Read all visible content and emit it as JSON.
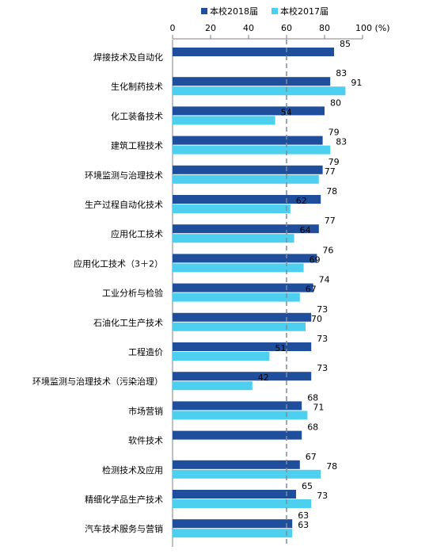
{
  "chart_data": {
    "type": "bar",
    "orientation": "horizontal",
    "xlim": [
      0,
      100
    ],
    "x_ticks": [
      0,
      20,
      40,
      60,
      80,
      100
    ],
    "x_unit": "(%)",
    "reference_line": 60,
    "legend_position": "top-right",
    "categories": [
      "焊接技术及自动化",
      "生化制药技术",
      "化工装备技术",
      "建筑工程技术",
      "环境监测与治理技术",
      "生产过程自动化技术",
      "应用化工技术",
      "应用化工技术（3＋2）",
      "工业分析与检验",
      "石油化工生产技术",
      "工程造价",
      "环境监测与治理技术（污染治理）",
      "市场营销",
      "软件技术",
      "检测技术及应用",
      "精细化学品生产技术",
      "汽车技术服务与营销"
    ],
    "series": [
      {
        "name": "本校2018届",
        "color": "#1f4e9c",
        "values": [
          85,
          83,
          80,
          79,
          79,
          78,
          77,
          76,
          74,
          73,
          73,
          73,
          68,
          68,
          67,
          65,
          63
        ]
      },
      {
        "name": "本校2017届",
        "color": "#4dd0f0",
        "values": [
          null,
          91,
          54,
          83,
          77,
          62,
          64,
          69,
          67,
          70,
          51,
          42,
          71,
          null,
          78,
          73,
          63
        ]
      }
    ]
  }
}
